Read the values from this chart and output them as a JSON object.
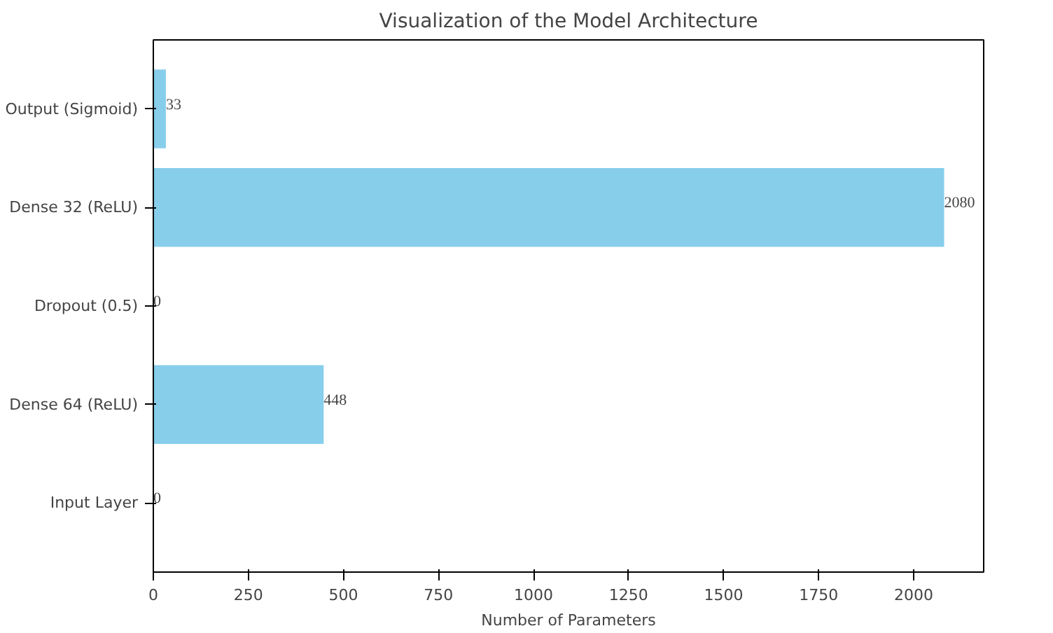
{
  "chart_data": {
    "type": "bar",
    "orientation": "horizontal",
    "title": "Visualization of the Model Architecture",
    "xlabel": "Number of Parameters",
    "categories": [
      "Output (Sigmoid)",
      "Dense 32 (ReLU)",
      "Dropout (0.5)",
      "Dense 64 (ReLU)",
      "Input Layer"
    ],
    "values": [
      33,
      2080,
      0,
      448,
      0
    ],
    "color": "#87ceeb",
    "xlim": [
      0,
      2184
    ],
    "xticks": [
      0,
      250,
      500,
      750,
      1000,
      1250,
      1500,
      1750,
      2000
    ],
    "data_labels": true,
    "grid": false
  }
}
